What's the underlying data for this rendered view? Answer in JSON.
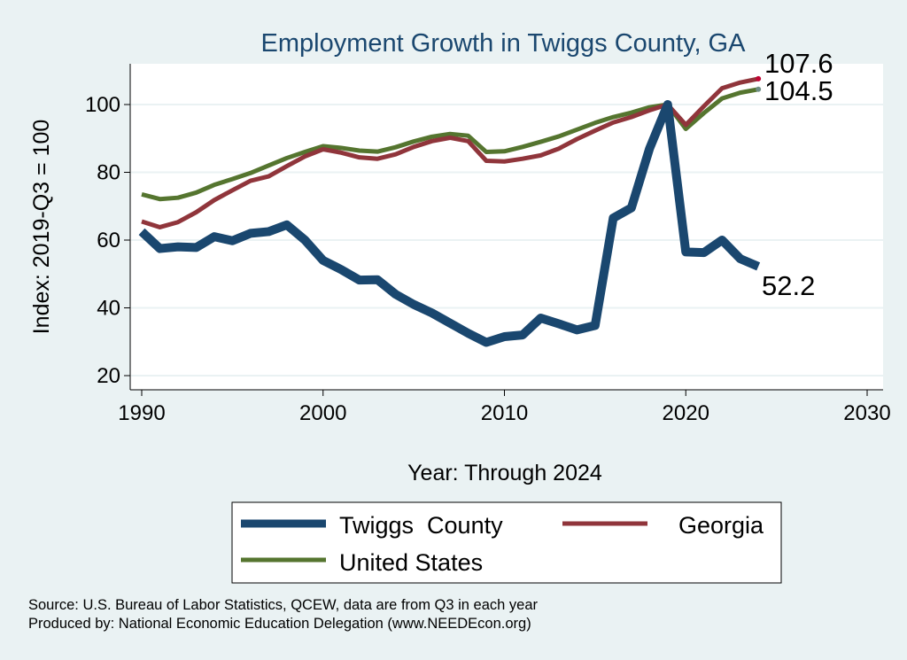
{
  "chart_data": {
    "type": "line",
    "title": "Employment Growth in Twiggs County, GA",
    "xlabel": "Year: Through 2024",
    "ylabel": "Index: 2019-Q3 = 100",
    "xlim": [
      1990,
      2030
    ],
    "ylim": [
      20,
      110
    ],
    "xticks": [
      1990,
      2000,
      2010,
      2020,
      2030
    ],
    "yticks": [
      20,
      40,
      60,
      80,
      100
    ],
    "grid": true,
    "legend_position": "bottom",
    "x": [
      1990,
      1991,
      1992,
      1993,
      1994,
      1995,
      1996,
      1997,
      1998,
      1999,
      2000,
      2001,
      2002,
      2003,
      2004,
      2005,
      2006,
      2007,
      2008,
      2009,
      2010,
      2011,
      2012,
      2013,
      2014,
      2015,
      2016,
      2017,
      2018,
      2019,
      2020,
      2021,
      2022,
      2023,
      2024
    ],
    "series": [
      {
        "name": "Twiggs  County",
        "color": "#1a476f",
        "end_label": "52.2",
        "values": [
          62.5,
          57.5,
          58,
          57.8,
          61,
          59.8,
          62,
          62.5,
          64.5,
          60,
          54,
          51.3,
          48.2,
          48.3,
          44,
          41,
          38.5,
          35.5,
          32.5,
          29.8,
          31.5,
          32,
          37,
          35.3,
          33.5,
          34.8,
          66.5,
          69.5,
          87,
          100,
          56.5,
          56.3,
          60,
          54.5,
          52.2
        ]
      },
      {
        "name": "Georgia",
        "color": "#90353b",
        "end_label": "107.6",
        "end_dot": "#c10534",
        "values": [
          65.5,
          63.8,
          65.3,
          68.2,
          71.8,
          74.7,
          77.5,
          78.8,
          81.8,
          84.7,
          86.8,
          85.8,
          84.4,
          84,
          85.3,
          87.5,
          89.2,
          90.2,
          89.2,
          83.4,
          83.2,
          84,
          85,
          87,
          89.8,
          92.3,
          94.7,
          96.3,
          98.3,
          100,
          94,
          99.5,
          104.8,
          106.5,
          107.6
        ]
      },
      {
        "name": "United States",
        "color": "#55752f",
        "end_label": "104.5",
        "end_dot": "#6e8e84",
        "values": [
          73.5,
          72.1,
          72.5,
          74,
          76.3,
          78,
          79.8,
          82,
          84.2,
          86,
          87.7,
          87.2,
          86.4,
          86.1,
          87.4,
          89.1,
          90.5,
          91.3,
          90.8,
          86,
          86.2,
          87.5,
          89,
          90.6,
          92.6,
          94.6,
          96.3,
          97.6,
          99.2,
          100,
          92.8,
          97.5,
          101.8,
          103.5,
          104.5
        ]
      }
    ]
  },
  "notes": {
    "source": "Source: U.S. Bureau of Labor Statistics, QCEW, data are from Q3 in each year",
    "produced_by": "Produced by: National Economic Education Delegation (www.NEEDEcon.org)"
  }
}
